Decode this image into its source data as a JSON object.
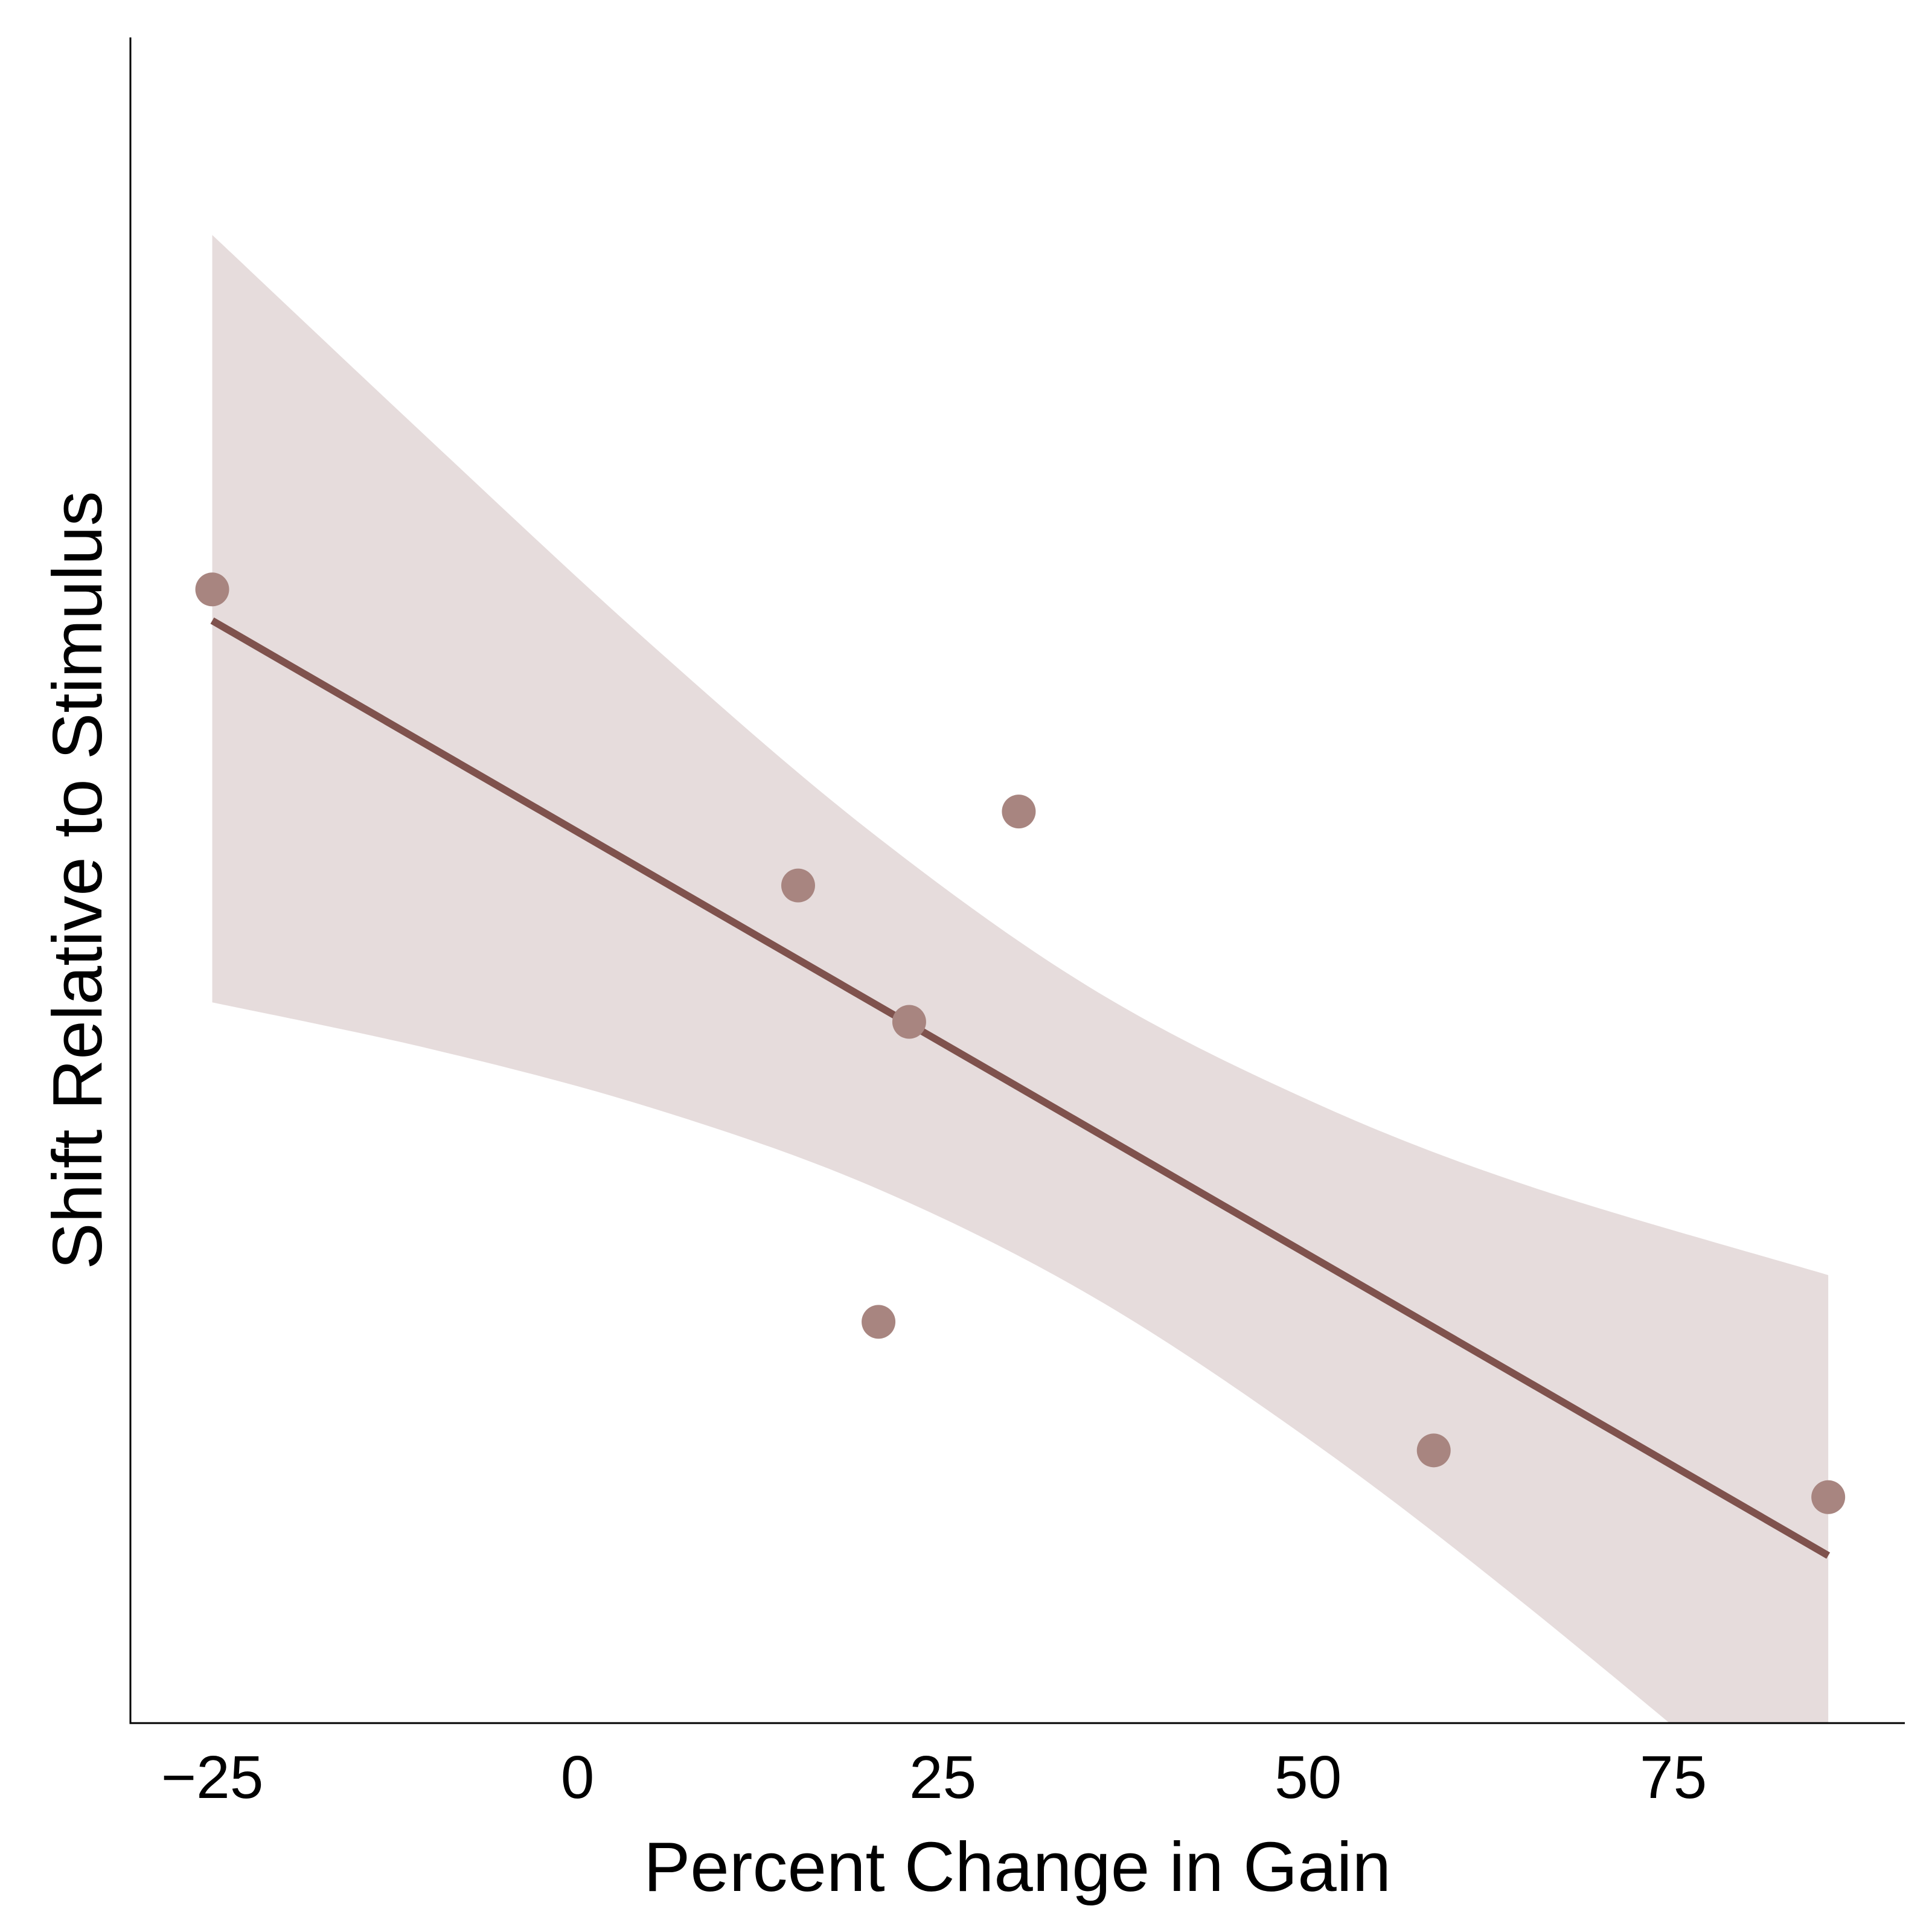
{
  "chart_data": {
    "type": "scatter",
    "title": "",
    "xlabel": "Percent Change in Gain",
    "ylabel": "Shift Relative to Stimulus",
    "xlim": [
      -30.6,
      90.8
    ],
    "ylim": [
      -2.11,
      2.22
    ],
    "xticks": [
      -25,
      0,
      25,
      50,
      75
    ],
    "xtick_labels": [
      "−25",
      "0",
      "25",
      "50",
      "75"
    ],
    "yticks_shown": false,
    "grid": false,
    "legend": "none",
    "points": [
      {
        "x": -25.0,
        "y": 0.8
      },
      {
        "x": 15.1,
        "y": 0.04
      },
      {
        "x": 22.7,
        "y": -0.31
      },
      {
        "x": 20.6,
        "y": -1.08
      },
      {
        "x": 30.2,
        "y": 0.23
      },
      {
        "x": 58.6,
        "y": -1.41
      },
      {
        "x": 85.6,
        "y": -1.53
      }
    ],
    "fit_line": {
      "x": [
        -25.0,
        85.6
      ],
      "y": [
        0.72,
        -1.68
      ]
    },
    "confidence_band": {
      "x": [
        -25.0,
        -10,
        5,
        20,
        35,
        50,
        65,
        85.6
      ],
      "upper": [
        1.71,
        1.18,
        0.66,
        0.18,
        -0.22,
        -0.51,
        -0.73,
        -0.96
      ],
      "lower": [
        -0.26,
        -0.38,
        -0.53,
        -0.73,
        -1.01,
        -1.38,
        -1.81,
        -2.45
      ]
    },
    "colors": {
      "points": "#a88580",
      "line": "#7f524d",
      "band": "#e6dcdc",
      "axis": "#000000"
    }
  }
}
